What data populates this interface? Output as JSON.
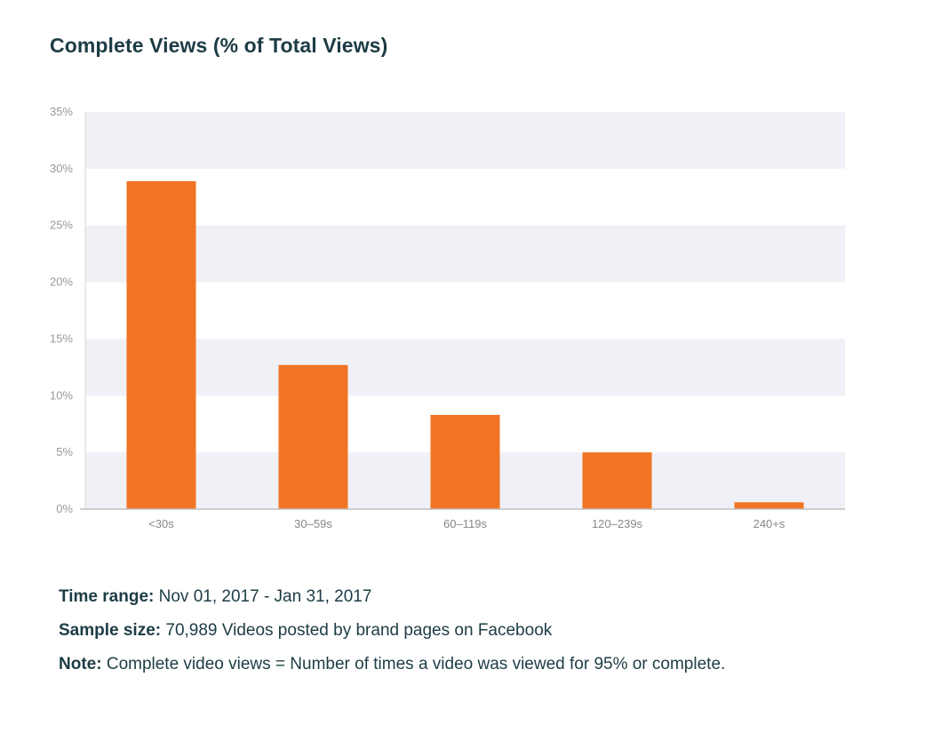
{
  "chart_data": {
    "type": "bar",
    "title": "Complete Views (% of Total Views)",
    "categories": [
      "<30s",
      "30–59s",
      "60–119s",
      "120–239s",
      "240+s"
    ],
    "values": [
      28.9,
      12.7,
      8.3,
      5.0,
      0.6
    ],
    "xlabel": "",
    "ylabel": "",
    "ylim": [
      0,
      35
    ],
    "yticks": [
      0,
      5,
      10,
      15,
      20,
      25,
      30,
      35
    ],
    "ytick_labels": [
      "0%",
      "5%",
      "10%",
      "15%",
      "20%",
      "25%",
      "30%",
      "35%"
    ],
    "grid": "alternating horizontal bands",
    "bar_color": "#f07423",
    "band_color": "#f0f1f7"
  },
  "notes": {
    "time_range_label": "Time range:",
    "time_range_value": " Nov 01, 2017 - Jan 31, 2017",
    "sample_size_label": "Sample size:",
    "sample_size_value": " 70,989 Videos posted by brand pages on Facebook",
    "note_label": "Note:",
    "note_value": " Complete video views = Number of times a video was viewed for 95% or complete."
  }
}
